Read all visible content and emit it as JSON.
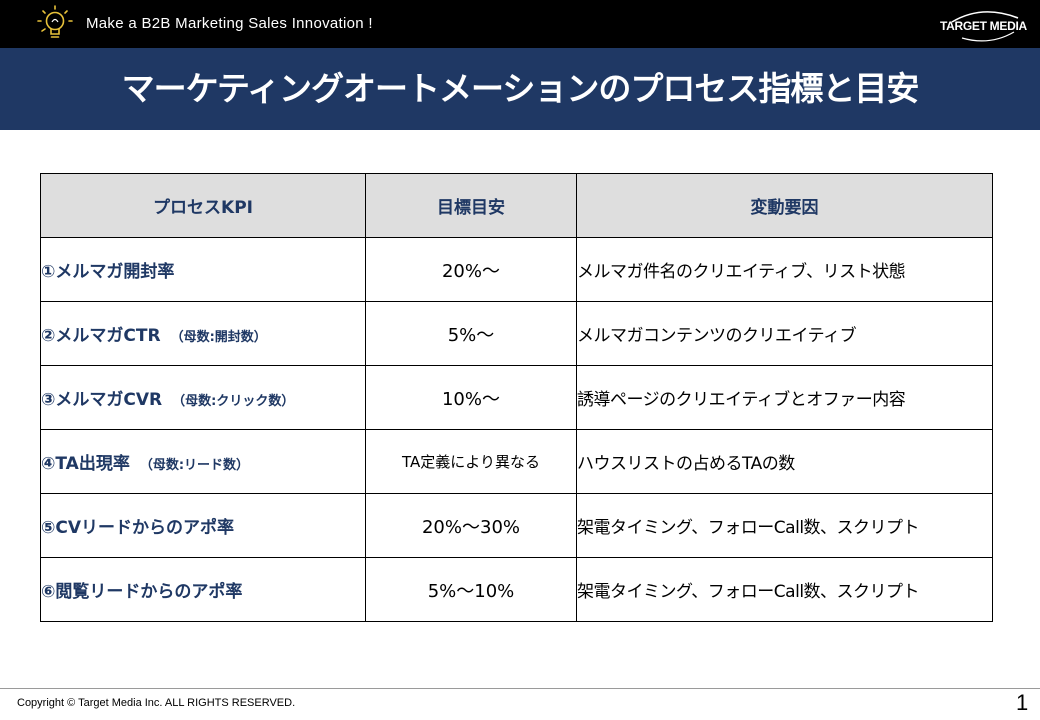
{
  "header": {
    "tagline": "Make a B2B Marketing Sales Innovation !",
    "brand": "TARGET MEDIA",
    "logo_icon": "lightbulb-icon"
  },
  "title": "マーケティングオートメーションのプロセス指標と目安",
  "table": {
    "columns": [
      "プロセスKPI",
      "目標目安",
      "変動要因"
    ],
    "rows": [
      {
        "kpi": "①メルマガ開封率",
        "note": "",
        "target": "20%～",
        "factor": "メルマガ件名のクリエイティブ、リスト状態"
      },
      {
        "kpi": "②メルマガCTR",
        "note": "（母数:開封数）",
        "target": "5%～",
        "factor": "メルマガコンテンツのクリエイティブ"
      },
      {
        "kpi": "③メルマガCVR",
        "note": "（母数:クリック数）",
        "target": "10%～",
        "factor": "誘導ページのクリエイティブとオファー内容"
      },
      {
        "kpi": "④TA出現率",
        "note": "（母数:リード数）",
        "target": "TA定義により異なる",
        "factor": "ハウスリストの占めるTAの数"
      },
      {
        "kpi": "⑤CVリードからのアポ率",
        "note": "",
        "target": "20%～30%",
        "factor": "架電タイミング、フォローCall数、スクリプト"
      },
      {
        "kpi": "⑥閲覧リードからのアポ率",
        "note": "",
        "target": "5%～10%",
        "factor": "架電タイミング、フォローCall数、スクリプト"
      }
    ]
  },
  "footer": {
    "copyright": "Copyright © Target Media Inc. ALL RIGHTS RESERVED.",
    "page": "1"
  }
}
